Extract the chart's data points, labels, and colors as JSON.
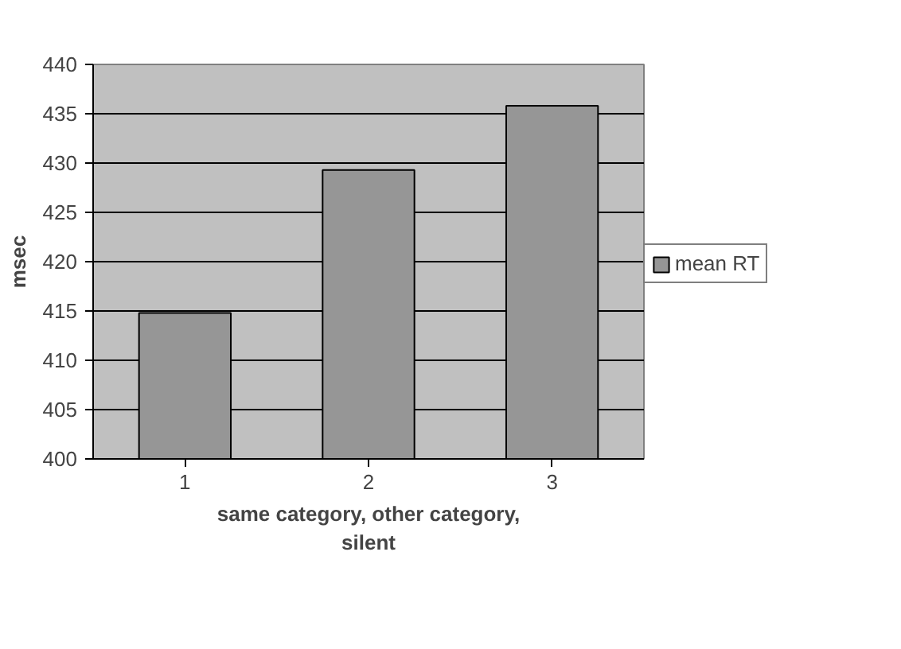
{
  "chart_data": {
    "type": "bar",
    "xlabel": "same category, other category,\nsilent",
    "ylabel": "msec",
    "categories": [
      "1",
      "2",
      "3"
    ],
    "series": [
      {
        "name": "mean RT",
        "color": "#969696",
        "values": [
          414.8,
          429.3,
          435.8
        ]
      }
    ],
    "ylim": [
      400,
      440
    ],
    "yticks": [
      400,
      405,
      410,
      415,
      420,
      425,
      430,
      435,
      440
    ],
    "grid": "y",
    "legend": "right"
  }
}
